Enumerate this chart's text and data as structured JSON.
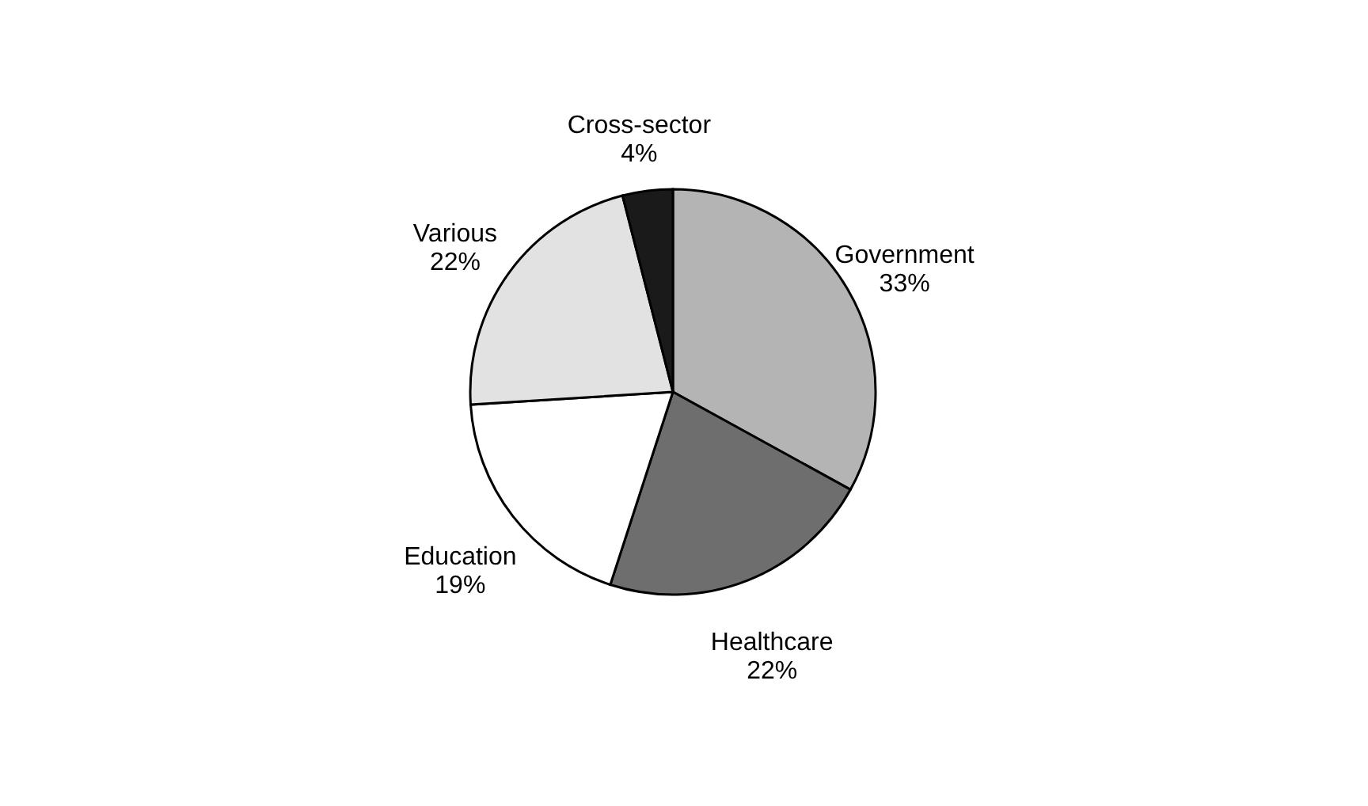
{
  "chart_data": {
    "type": "pie",
    "categories": [
      "Government",
      "Healthcare",
      "Education",
      "Various",
      "Cross-sector"
    ],
    "values": [
      33,
      22,
      19,
      22,
      4
    ],
    "value_labels": [
      "33%",
      "22%",
      "19%",
      "22%",
      "4%"
    ],
    "colors": [
      "#b4b4b4",
      "#6e6e6e",
      "#ffffff",
      "#e2e2e2",
      "#1a1a1a"
    ],
    "legend": false
  }
}
